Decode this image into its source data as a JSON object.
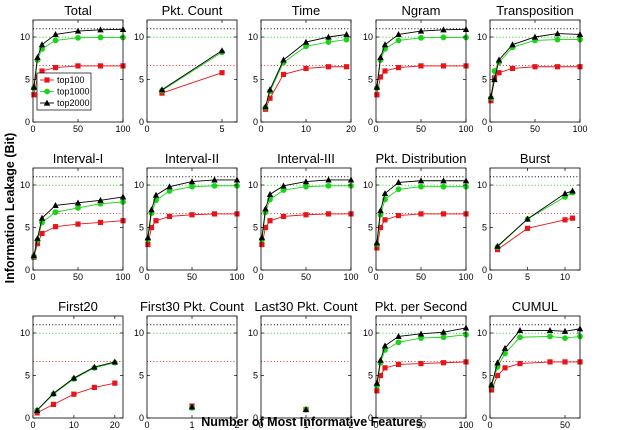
{
  "chart_data": {
    "type": "line",
    "ylabel": "Information Leakage (Bit)",
    "xlabel": "Number of Most Informative Features",
    "series_names": [
      "top100",
      "top1000",
      "top2000"
    ],
    "series_colors": [
      "#e8141a",
      "#17d417",
      "#000000"
    ],
    "reference_lines": [
      6.64,
      9.97,
      10.97
    ],
    "ylim": [
      0,
      12
    ],
    "yticks": [
      0,
      5,
      10
    ],
    "panels": [
      {
        "title": "Total",
        "xlim": [
          0,
          100
        ],
        "xticks": [
          0,
          50,
          100
        ],
        "x": [
          1,
          5,
          10,
          25,
          50,
          75,
          100
        ],
        "series": [
          [
            3.2,
            5.3,
            6.0,
            6.4,
            6.6,
            6.6,
            6.6
          ],
          [
            4.0,
            7.3,
            8.6,
            9.6,
            9.9,
            9.95,
            9.95
          ],
          [
            4.1,
            7.6,
            9.1,
            10.3,
            10.7,
            10.85,
            10.9
          ]
        ]
      },
      {
        "title": "Pkt. Count",
        "xlim": [
          0,
          6
        ],
        "xticks": [
          0,
          5
        ],
        "x": [
          1,
          5
        ],
        "series": [
          [
            3.4,
            5.8
          ],
          [
            3.7,
            8.2
          ],
          [
            3.8,
            8.4
          ]
        ]
      },
      {
        "title": "Time",
        "xlim": [
          0,
          20
        ],
        "xticks": [
          0,
          10,
          20
        ],
        "x": [
          1,
          2,
          5,
          10,
          15,
          19
        ],
        "series": [
          [
            1.5,
            2.8,
            5.6,
            6.3,
            6.5,
            6.5
          ],
          [
            1.7,
            3.6,
            7.0,
            8.9,
            9.4,
            9.7
          ],
          [
            1.8,
            3.8,
            7.3,
            9.4,
            10.0,
            10.3
          ]
        ]
      },
      {
        "title": "Ngram",
        "xlim": [
          0,
          100
        ],
        "xticks": [
          0,
          50,
          100
        ],
        "x": [
          1,
          5,
          10,
          25,
          50,
          75,
          100
        ],
        "series": [
          [
            3.2,
            5.3,
            6.0,
            6.4,
            6.6,
            6.6,
            6.6
          ],
          [
            4.0,
            7.3,
            8.6,
            9.6,
            9.9,
            9.95,
            9.95
          ],
          [
            4.1,
            7.6,
            9.1,
            10.3,
            10.7,
            10.85,
            10.9
          ]
        ]
      },
      {
        "title": "Transposition",
        "xlim": [
          0,
          100
        ],
        "xticks": [
          0,
          50,
          100
        ],
        "x": [
          1,
          5,
          10,
          25,
          50,
          75,
          100
        ],
        "series": [
          [
            2.5,
            5.2,
            5.8,
            6.3,
            6.5,
            6.5,
            6.5
          ],
          [
            2.8,
            6.0,
            7.0,
            8.8,
            9.6,
            9.7,
            9.7
          ],
          [
            3.0,
            5.0,
            7.3,
            9.1,
            10.0,
            10.4,
            10.3
          ]
        ]
      },
      {
        "title": "Interval-I",
        "xlim": [
          0,
          100
        ],
        "xticks": [
          0,
          50,
          100
        ],
        "x": [
          1,
          5,
          10,
          25,
          50,
          75,
          100
        ],
        "series": [
          [
            1.5,
            3.1,
            4.3,
            5.1,
            5.4,
            5.6,
            5.8
          ],
          [
            1.6,
            3.5,
            5.6,
            6.8,
            7.3,
            7.8,
            8.0
          ],
          [
            1.7,
            3.7,
            6.1,
            7.6,
            7.9,
            8.2,
            8.6
          ]
        ]
      },
      {
        "title": "Interval-II",
        "xlim": [
          0,
          100
        ],
        "xticks": [
          0,
          50,
          100
        ],
        "x": [
          1,
          5,
          10,
          25,
          50,
          75,
          100
        ],
        "series": [
          [
            3.0,
            5.0,
            5.8,
            6.3,
            6.5,
            6.6,
            6.6
          ],
          [
            3.6,
            6.7,
            8.2,
            9.3,
            9.8,
            9.9,
            9.9
          ],
          [
            3.8,
            7.1,
            8.8,
            9.8,
            10.4,
            10.6,
            10.6
          ]
        ]
      },
      {
        "title": "Interval-III",
        "xlim": [
          0,
          100
        ],
        "xticks": [
          0,
          50,
          100
        ],
        "x": [
          1,
          5,
          10,
          25,
          50,
          75,
          100
        ],
        "series": [
          [
            3.0,
            5.0,
            5.8,
            6.3,
            6.5,
            6.6,
            6.6
          ],
          [
            3.6,
            6.8,
            8.3,
            9.4,
            9.8,
            9.9,
            9.9
          ],
          [
            3.8,
            7.2,
            8.9,
            9.9,
            10.4,
            10.6,
            10.6
          ]
        ]
      },
      {
        "title": "Pkt. Distribution",
        "xlim": [
          0,
          100
        ],
        "xticks": [
          0,
          50,
          100
        ],
        "x": [
          1,
          5,
          10,
          25,
          50,
          75,
          100
        ],
        "series": [
          [
            2.6,
            5.0,
            5.9,
            6.4,
            6.6,
            6.6,
            6.6
          ],
          [
            3.0,
            6.5,
            8.3,
            9.5,
            9.8,
            9.8,
            9.8
          ],
          [
            3.2,
            7.0,
            9.0,
            10.3,
            10.5,
            10.5,
            10.5
          ]
        ]
      },
      {
        "title": "Burst",
        "xlim": [
          0,
          12
        ],
        "xticks": [
          0,
          5,
          10
        ],
        "x": [
          1,
          5,
          10,
          11
        ],
        "series": [
          [
            2.4,
            4.9,
            5.9,
            6.1
          ],
          [
            2.7,
            6.0,
            8.6,
            9.1
          ],
          [
            2.8,
            6.0,
            9.0,
            9.3
          ]
        ]
      },
      {
        "title": "First20",
        "xlim": [
          0,
          22
        ],
        "xticks": [
          0,
          10,
          20
        ],
        "x": [
          1,
          5,
          10,
          15,
          20
        ],
        "series": [
          [
            0.6,
            1.6,
            2.8,
            3.6,
            4.1
          ],
          [
            0.9,
            2.8,
            4.6,
            5.9,
            6.5
          ],
          [
            0.9,
            2.9,
            4.7,
            6.0,
            6.6
          ]
        ]
      },
      {
        "title": "First30 Pkt. Count",
        "xlim": [
          0,
          2
        ],
        "xticks": [
          0,
          1,
          2
        ],
        "x": [
          1
        ],
        "series": [
          [
            1.4
          ],
          [
            1.2
          ],
          [
            1.3
          ]
        ]
      },
      {
        "title": "Last30 Pkt. Count",
        "xlim": [
          0,
          2
        ],
        "xticks": [
          0,
          1,
          2
        ],
        "x": [
          1
        ],
        "series": [
          [
            1.0
          ],
          [
            1.0
          ],
          [
            1.0
          ]
        ]
      },
      {
        "title": "Pkt. per Second",
        "xlim": [
          0,
          100
        ],
        "xticks": [
          0,
          50,
          100
        ],
        "x": [
          1,
          5,
          10,
          25,
          50,
          75,
          100
        ],
        "series": [
          [
            3.2,
            5.0,
            5.9,
            6.3,
            6.4,
            6.5,
            6.6
          ],
          [
            3.8,
            6.5,
            8.0,
            8.9,
            9.4,
            9.5,
            9.8
          ],
          [
            4.1,
            6.8,
            8.5,
            9.6,
            9.9,
            10.1,
            10.6
          ]
        ]
      },
      {
        "title": "CUMUL",
        "xlim": [
          0,
          60
        ],
        "xticks": [
          0,
          50
        ],
        "x": [
          1,
          5,
          10,
          20,
          40,
          50,
          60
        ],
        "series": [
          [
            3.3,
            5.0,
            5.9,
            6.4,
            6.6,
            6.6,
            6.6
          ],
          [
            3.8,
            6.0,
            7.6,
            9.5,
            9.6,
            9.4,
            9.6
          ],
          [
            3.9,
            6.5,
            8.2,
            10.3,
            10.3,
            10.2,
            10.5
          ]
        ]
      }
    ]
  }
}
